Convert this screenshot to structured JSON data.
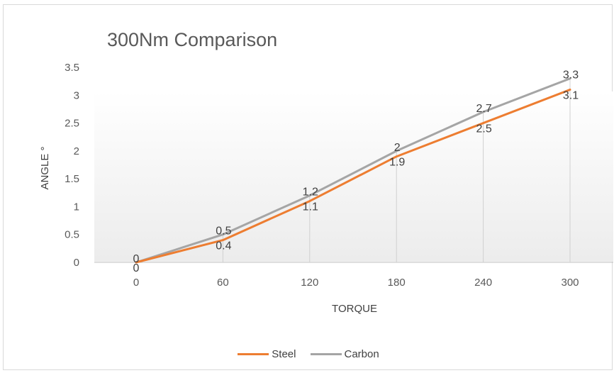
{
  "chart_data": {
    "type": "line",
    "title": "300Nm Comparison",
    "xlabel": "TORQUE",
    "ylabel": "ANGLE °",
    "categories": [
      "0",
      "60",
      "120",
      "180",
      "240",
      "300"
    ],
    "x": [
      0,
      60,
      120,
      180,
      240,
      300
    ],
    "series": [
      {
        "name": "Steel",
        "color": "#ed7d31",
        "values": [
          0,
          0.4,
          1.1,
          1.9,
          2.5,
          3.1
        ],
        "labels": [
          "0",
          "0.4",
          "1.1",
          "1.9",
          "2.5",
          "3.1"
        ]
      },
      {
        "name": "Carbon",
        "color": "#a5a5a5",
        "values": [
          0,
          0.5,
          1.2,
          2,
          2.7,
          3.3
        ],
        "labels": [
          "0",
          "0.5",
          "1.2",
          "2",
          "2.7",
          "3.3"
        ]
      }
    ],
    "ylim": [
      0,
      3.5
    ],
    "yticks": [
      0,
      0.5,
      1,
      1.5,
      2,
      2.5,
      3,
      3.5
    ],
    "ytick_labels": [
      "0",
      "0.5",
      "1",
      "1.5",
      "2",
      "2.5",
      "3",
      "3.5"
    ],
    "drop_lines": true,
    "legend_position": "bottom",
    "grid": false
  }
}
